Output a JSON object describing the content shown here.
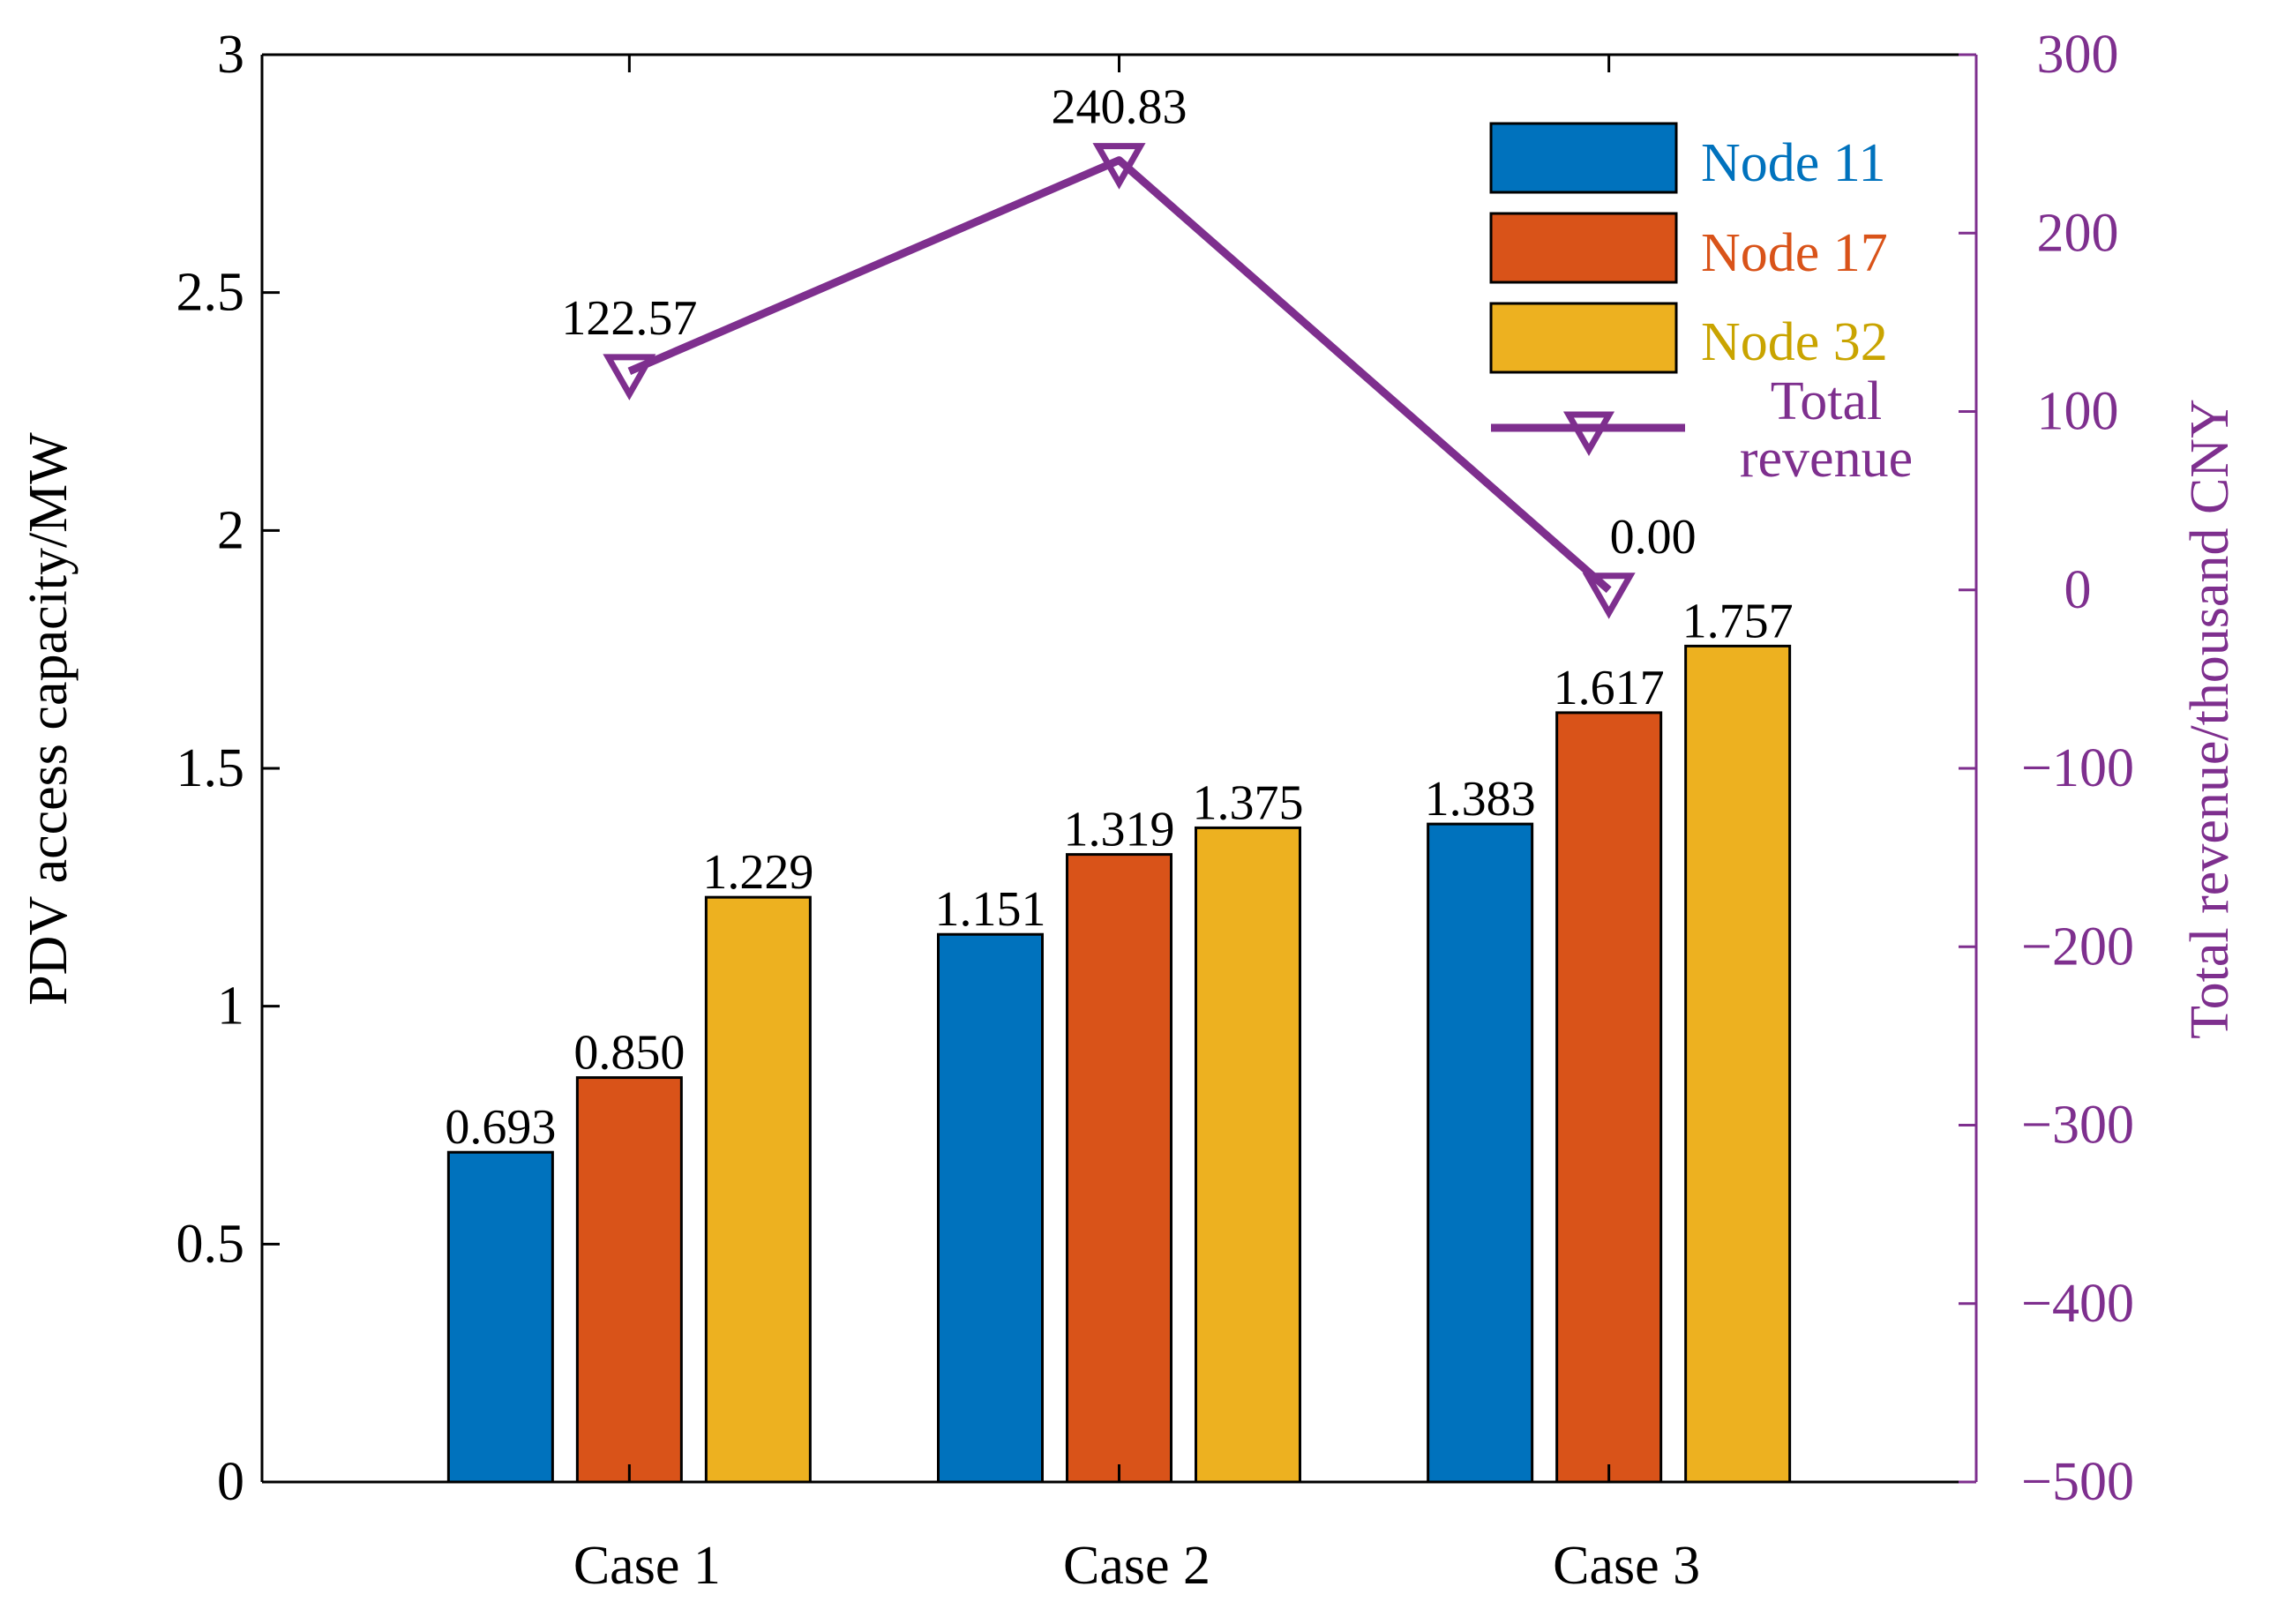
{
  "chart_data": {
    "type": "bar",
    "categories": [
      "Case 1",
      "Case 2",
      "Case 3"
    ],
    "ylabel_left": "PDV access capacity/MW",
    "ylabel_right": "Total revenue/thousand CNY",
    "ylim_left": [
      0,
      3
    ],
    "ylim_right": [
      -500,
      300
    ],
    "yticks_left": [
      0,
      0.5,
      1,
      1.5,
      2,
      2.5,
      3
    ],
    "yticks_left_labels": [
      "0",
      "0.5",
      "1",
      "1.5",
      "2",
      "2.5",
      "3"
    ],
    "yticks_right": [
      -500,
      -400,
      -300,
      -200,
      -100,
      0,
      100,
      200,
      300
    ],
    "yticks_right_labels": [
      "−500",
      "−400",
      "−300",
      "−200",
      "−100",
      "0",
      "100",
      "200",
      "300"
    ],
    "series": [
      {
        "name": "Node 11",
        "color": "#0072BD",
        "values": [
          0.693,
          1.151,
          1.383
        ],
        "labels": [
          "0.693",
          "1.151",
          "1.383"
        ]
      },
      {
        "name": "Node 17",
        "color": "#D95319",
        "values": [
          0.85,
          1.319,
          1.617
        ],
        "labels": [
          "0.850",
          "1.319",
          "1.617"
        ]
      },
      {
        "name": "Node 32",
        "color": "#EDB120",
        "values": [
          1.229,
          1.375,
          1.757
        ],
        "labels": [
          "1.229",
          "1.375",
          "1.757"
        ]
      }
    ],
    "line": {
      "name_line1": "Total",
      "name_line2": "revenue",
      "axis": "right",
      "color": "#7E2F8E",
      "marker": "triangle-down",
      "values": [
        122.57,
        240.83,
        0.0
      ],
      "labels": [
        "122.57",
        "240.83",
        "0.00"
      ]
    },
    "legend_position": "top-right",
    "legend_text_colors": [
      "#0072BD",
      "#D95319",
      "#C9A400",
      "#7E2F8E"
    ]
  }
}
